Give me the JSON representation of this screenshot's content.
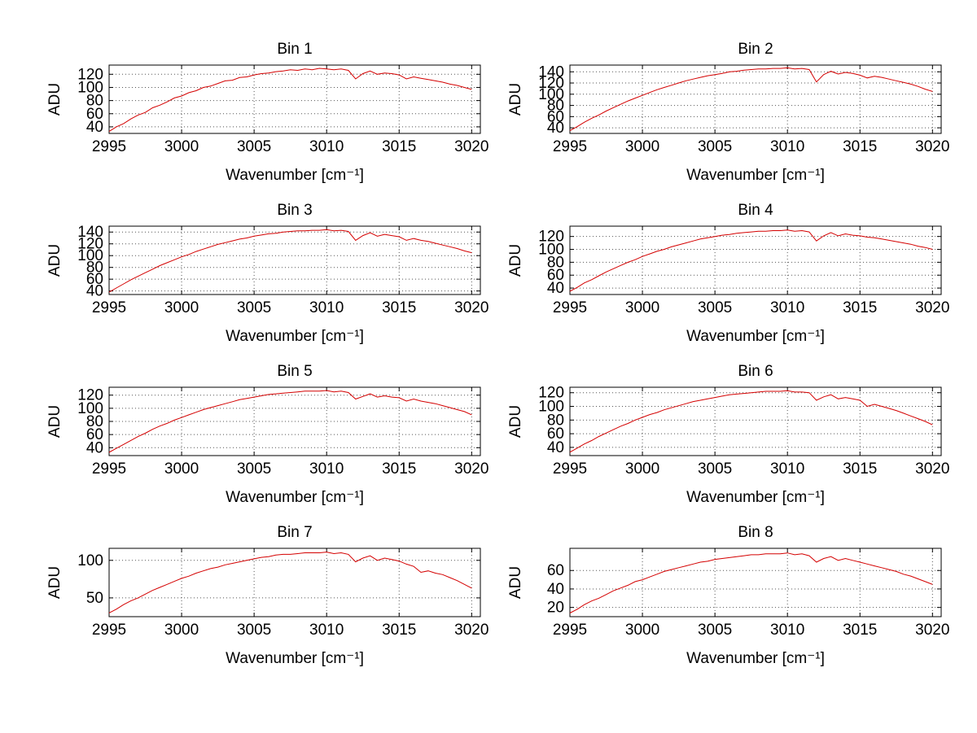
{
  "figure": {
    "background": "#ffffff",
    "grid_color": "#555555",
    "axis_color": "#000000"
  },
  "chart_data": [
    {
      "type": "line",
      "title": "Bin 1",
      "xlabel": "Wavenumber [cm⁻¹]",
      "ylabel": "ADU",
      "line_color": "#d40000",
      "grid": true,
      "legend": false,
      "x_start": 2995,
      "x_step": 0.5,
      "xlim": [
        2995,
        3020.6
      ],
      "ylim": [
        30,
        134
      ],
      "xticks": [
        2995,
        3000,
        3005,
        3010,
        3015,
        3020
      ],
      "yticks": [
        40,
        60,
        80,
        100,
        120
      ],
      "values": [
        33,
        40,
        45,
        52,
        58,
        62,
        69,
        73,
        78,
        84,
        87,
        92,
        95,
        100,
        102,
        106,
        110,
        111,
        115,
        116,
        119,
        121,
        122,
        124,
        125,
        127,
        126,
        128,
        127,
        129,
        128,
        127,
        128,
        126,
        113,
        121,
        125,
        120,
        122,
        121,
        119,
        113,
        116,
        114,
        112,
        110,
        108,
        105,
        103,
        100,
        97
      ]
    },
    {
      "type": "line",
      "title": "Bin 2",
      "xlabel": "Wavenumber [cm⁻¹]",
      "ylabel": "ADU",
      "line_color": "#d40000",
      "grid": true,
      "legend": false,
      "x_start": 2995,
      "x_step": 0.5,
      "xlim": [
        2995,
        3020.6
      ],
      "ylim": [
        30,
        152
      ],
      "xticks": [
        2995,
        3000,
        3005,
        3010,
        3015,
        3020
      ],
      "yticks": [
        40,
        60,
        80,
        100,
        120,
        140
      ],
      "values": [
        35,
        42,
        50,
        57,
        63,
        70,
        76,
        82,
        88,
        93,
        98,
        103,
        108,
        112,
        116,
        120,
        124,
        127,
        130,
        133,
        135,
        137,
        140,
        141,
        143,
        144,
        145,
        145,
        146,
        146,
        147,
        145,
        146,
        144,
        122,
        135,
        141,
        136,
        139,
        137,
        134,
        129,
        132,
        130,
        127,
        124,
        121,
        118,
        114,
        109,
        105
      ]
    },
    {
      "type": "line",
      "title": "Bin 3",
      "xlabel": "Wavenumber [cm⁻¹]",
      "ylabel": "ADU",
      "line_color": "#d40000",
      "grid": true,
      "legend": false,
      "x_start": 2995,
      "x_step": 0.5,
      "xlim": [
        2995,
        3020.6
      ],
      "ylim": [
        34,
        150
      ],
      "xticks": [
        2995,
        3000,
        3005,
        3010,
        3015,
        3020
      ],
      "yticks": [
        40,
        60,
        80,
        100,
        120,
        140
      ],
      "values": [
        38,
        45,
        52,
        59,
        65,
        71,
        77,
        83,
        88,
        93,
        98,
        102,
        107,
        111,
        115,
        119,
        122,
        125,
        128,
        130,
        133,
        135,
        137,
        138,
        140,
        141,
        142,
        142,
        143,
        143,
        144,
        142,
        143,
        141,
        126,
        134,
        139,
        133,
        136,
        134,
        132,
        126,
        129,
        126,
        124,
        121,
        118,
        115,
        112,
        108,
        105
      ]
    },
    {
      "type": "line",
      "title": "Bin 4",
      "xlabel": "Wavenumber [cm⁻¹]",
      "ylabel": "ADU",
      "line_color": "#d40000",
      "grid": true,
      "legend": false,
      "x_start": 2995,
      "x_step": 0.5,
      "xlim": [
        2995,
        3020.6
      ],
      "ylim": [
        30,
        136
      ],
      "xticks": [
        2995,
        3000,
        3005,
        3010,
        3015,
        3020
      ],
      "yticks": [
        40,
        60,
        80,
        100,
        120
      ],
      "values": [
        35,
        41,
        48,
        53,
        59,
        65,
        70,
        75,
        80,
        84,
        89,
        93,
        97,
        100,
        104,
        107,
        110,
        113,
        116,
        118,
        120,
        122,
        123,
        125,
        126,
        127,
        128,
        128,
        129,
        129,
        130,
        128,
        129,
        127,
        113,
        121,
        126,
        121,
        124,
        122,
        121,
        119,
        118,
        116,
        114,
        112,
        110,
        108,
        105,
        103,
        100
      ]
    },
    {
      "type": "line",
      "title": "Bin 5",
      "xlabel": "Wavenumber [cm⁻¹]",
      "ylabel": "ADU",
      "line_color": "#d40000",
      "grid": true,
      "legend": false,
      "x_start": 2995,
      "x_step": 0.5,
      "xlim": [
        2995,
        3020.6
      ],
      "ylim": [
        28,
        132
      ],
      "xticks": [
        2995,
        3000,
        3005,
        3010,
        3015,
        3020
      ],
      "yticks": [
        40,
        60,
        80,
        100,
        120
      ],
      "values": [
        33,
        39,
        45,
        51,
        57,
        62,
        68,
        73,
        77,
        82,
        86,
        90,
        94,
        98,
        101,
        104,
        107,
        110,
        113,
        115,
        117,
        119,
        121,
        122,
        123,
        124,
        125,
        126,
        126,
        126,
        127,
        125,
        126,
        124,
        114,
        118,
        122,
        117,
        119,
        117,
        116,
        111,
        114,
        111,
        109,
        107,
        104,
        101,
        98,
        95,
        90
      ]
    },
    {
      "type": "line",
      "title": "Bin 6",
      "xlabel": "Wavenumber [cm⁻¹]",
      "ylabel": "ADU",
      "line_color": "#d40000",
      "grid": true,
      "legend": false,
      "x_start": 2995,
      "x_step": 0.5,
      "xlim": [
        2995,
        3020.6
      ],
      "ylim": [
        28,
        128
      ],
      "xticks": [
        2995,
        3000,
        3005,
        3010,
        3015,
        3020
      ],
      "yticks": [
        40,
        60,
        80,
        100,
        120
      ],
      "values": [
        33,
        39,
        45,
        50,
        56,
        61,
        66,
        71,
        75,
        80,
        84,
        88,
        91,
        95,
        98,
        101,
        104,
        107,
        109,
        111,
        113,
        115,
        117,
        118,
        119,
        120,
        121,
        122,
        122,
        122,
        123,
        121,
        121,
        120,
        109,
        114,
        117,
        111,
        113,
        111,
        109,
        100,
        103,
        100,
        97,
        94,
        90,
        86,
        82,
        78,
        73
      ]
    },
    {
      "type": "line",
      "title": "Bin 7",
      "xlabel": "Wavenumber [cm⁻¹]",
      "ylabel": "ADU",
      "line_color": "#d40000",
      "grid": true,
      "legend": false,
      "x_start": 2995,
      "x_step": 0.5,
      "xlim": [
        2995,
        3020.6
      ],
      "ylim": [
        25,
        116
      ],
      "xticks": [
        2995,
        3000,
        3005,
        3010,
        3015,
        3020
      ],
      "yticks": [
        50,
        100
      ],
      "values": [
        30,
        35,
        41,
        46,
        50,
        55,
        60,
        64,
        68,
        72,
        76,
        79,
        83,
        86,
        89,
        91,
        94,
        96,
        98,
        100,
        102,
        104,
        105,
        107,
        108,
        108,
        109,
        110,
        110,
        110,
        111,
        109,
        110,
        108,
        98,
        103,
        106,
        100,
        103,
        101,
        99,
        95,
        92,
        84,
        86,
        83,
        81,
        77,
        73,
        68,
        63
      ]
    },
    {
      "type": "line",
      "title": "Bin 8",
      "xlabel": "Wavenumber [cm⁻¹]",
      "ylabel": "ADU",
      "line_color": "#d40000",
      "grid": true,
      "legend": false,
      "x_start": 2995,
      "x_step": 0.5,
      "xlim": [
        2995,
        3020.6
      ],
      "ylim": [
        10,
        84
      ],
      "xticks": [
        2995,
        3000,
        3005,
        3010,
        3015,
        3020
      ],
      "yticks": [
        20,
        40,
        60
      ],
      "values": [
        14,
        18,
        23,
        27,
        30,
        34,
        38,
        41,
        44,
        48,
        50,
        53,
        56,
        59,
        61,
        63,
        65,
        67,
        69,
        70,
        72,
        73,
        74,
        75,
        76,
        77,
        77,
        78,
        78,
        78,
        79,
        77,
        78,
        76,
        69,
        73,
        75,
        71,
        73,
        71,
        69,
        67,
        65,
        63,
        61,
        59,
        56,
        54,
        51,
        48,
        45
      ]
    }
  ]
}
